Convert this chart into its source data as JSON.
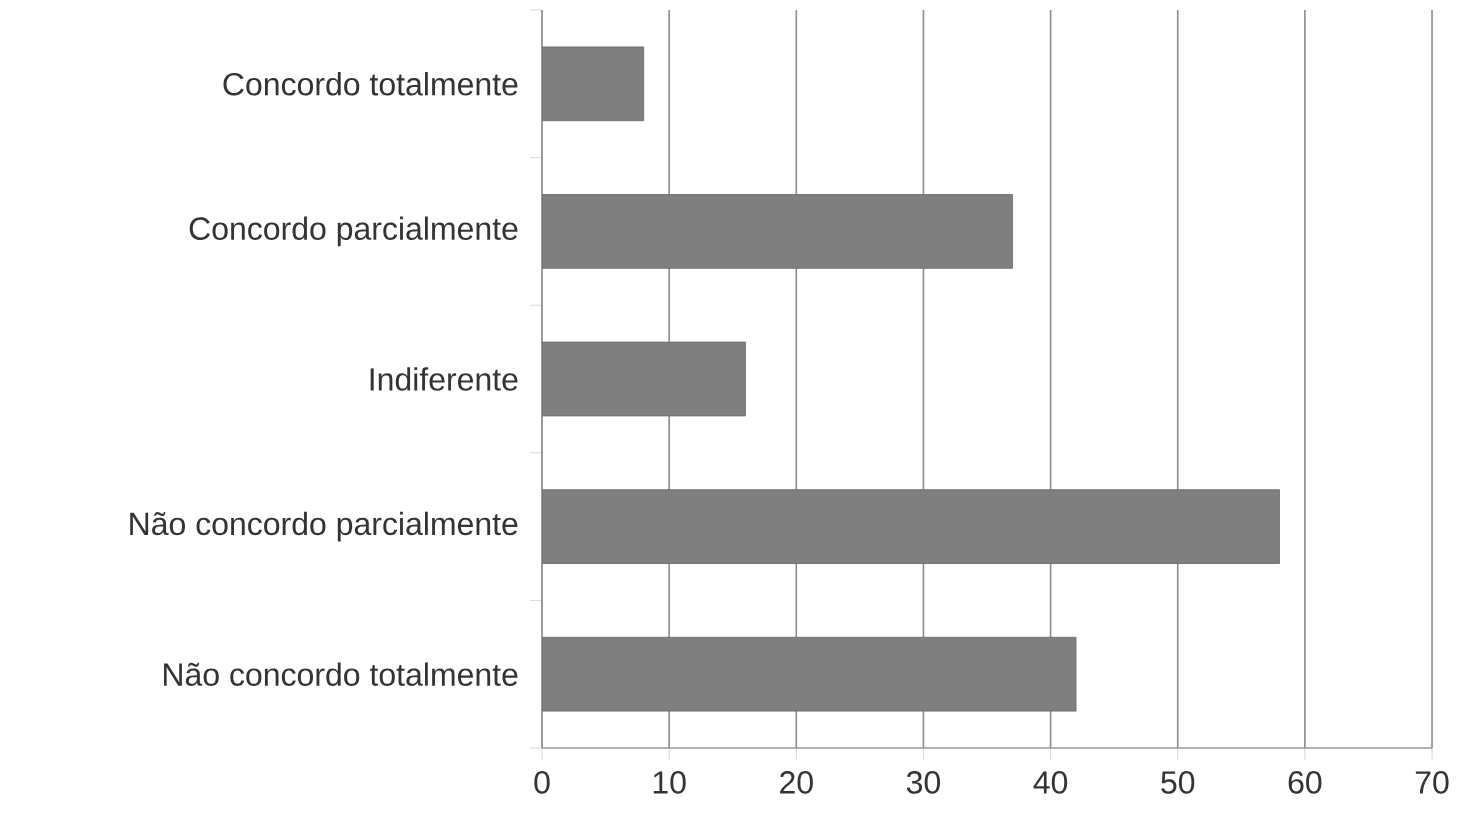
{
  "chart_data": {
    "type": "bar",
    "orientation": "horizontal",
    "categories": [
      "Concordo totalmente",
      "Concordo parcialmente",
      "Indiferente",
      "Não concordo parcialmente",
      "Não concordo totalmente"
    ],
    "values": [
      8,
      37,
      16,
      58,
      42
    ],
    "color": "#7f7f7f",
    "xlim": [
      0,
      70
    ],
    "xticks": [
      0,
      10,
      20,
      30,
      40,
      50,
      60,
      70
    ],
    "grid": "x"
  }
}
